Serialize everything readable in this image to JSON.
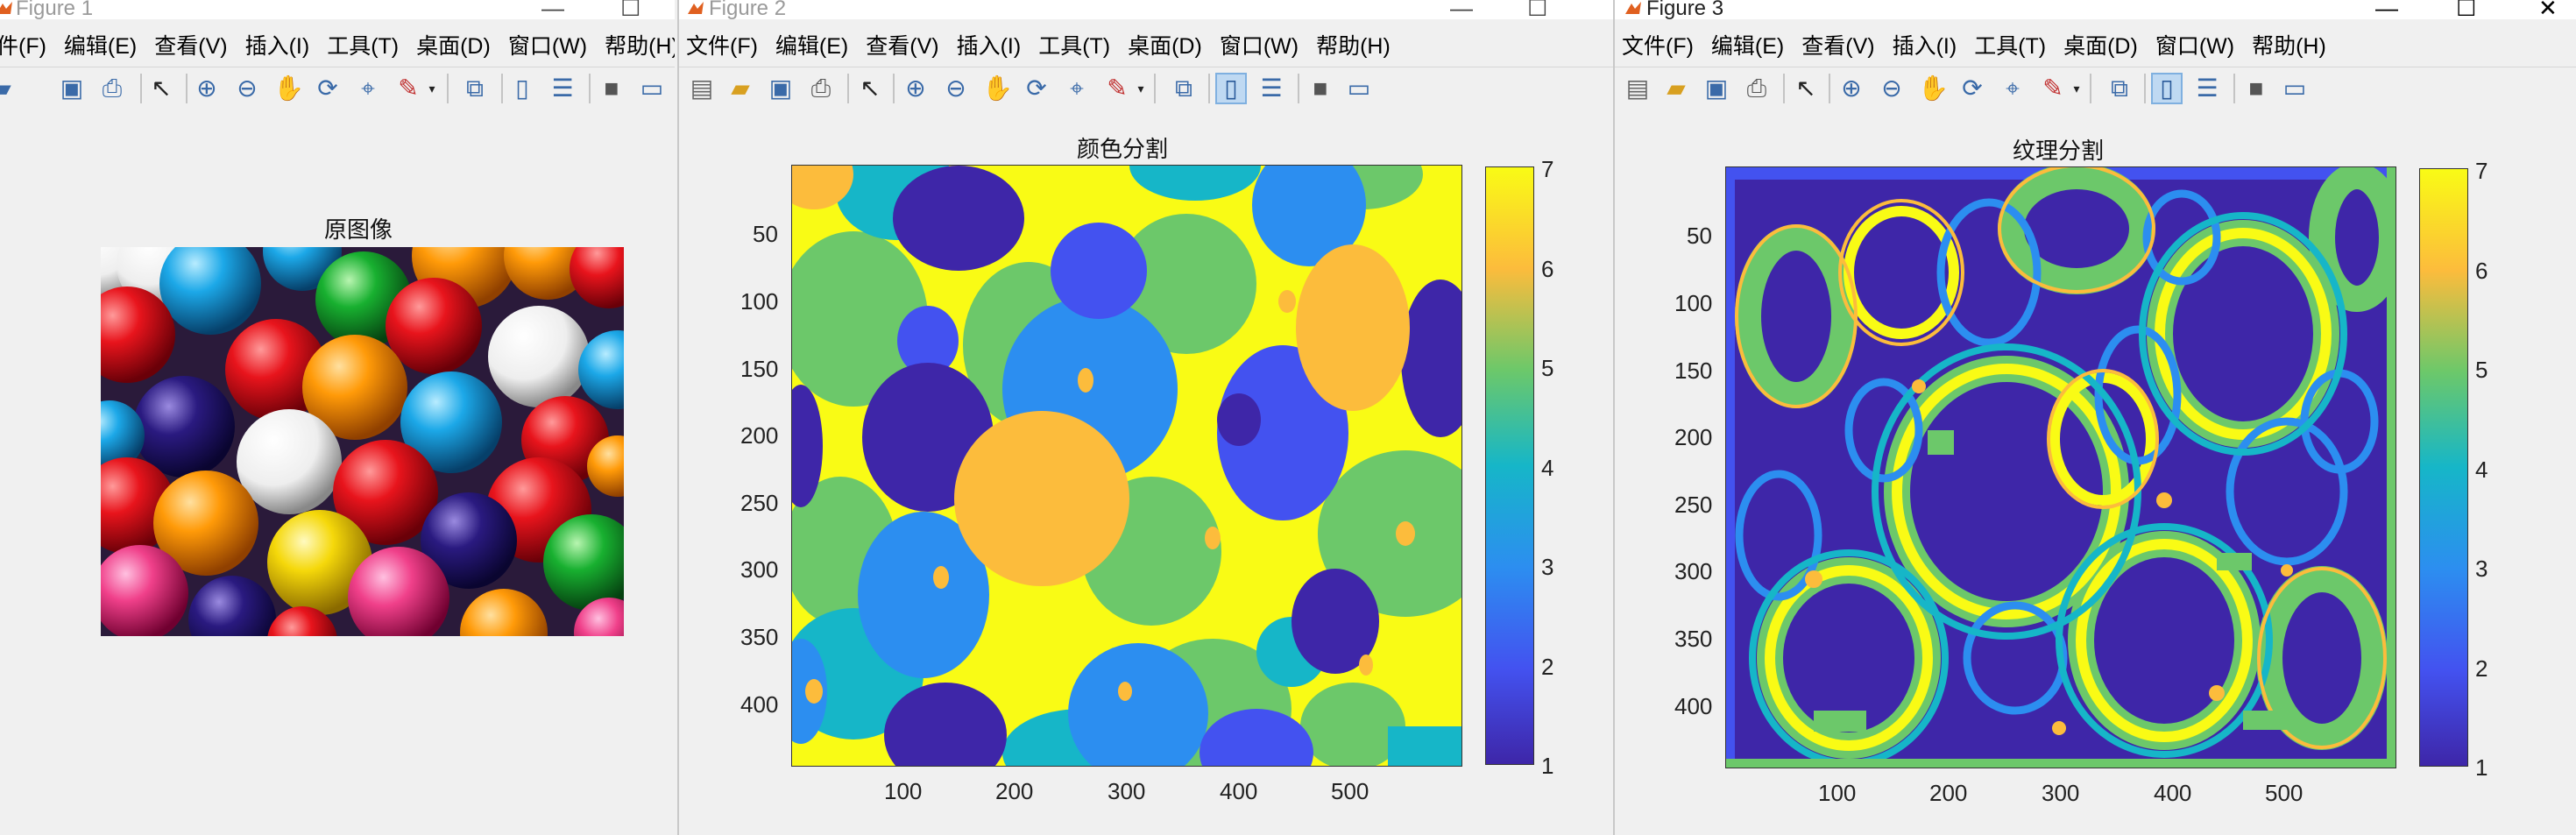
{
  "menu": [
    "文件(F)",
    "编辑(E)",
    "查看(V)",
    "插入(I)",
    "工具(T)",
    "桌面(D)",
    "窗口(W)",
    "帮助(H)"
  ],
  "menu_partial_first": "件(F)",
  "window_buttons": {
    "minimize": "—",
    "maximize": "☐",
    "close": "✕"
  },
  "figure1": {
    "window_title": "Figure 1",
    "axes_title": "原图像"
  },
  "figure2": {
    "window_title": "Figure 2",
    "axes_title": "颜色分割",
    "yticks": [
      "50",
      "100",
      "150",
      "200",
      "250",
      "300",
      "350",
      "400"
    ],
    "xticks": [
      "100",
      "200",
      "300",
      "400",
      "500"
    ],
    "cbar_ticks": [
      "7",
      "6",
      "5",
      "4",
      "3",
      "2",
      "1"
    ]
  },
  "figure3": {
    "window_title": "Figure 3",
    "axes_title": "纹理分割",
    "yticks": [
      "50",
      "100",
      "150",
      "200",
      "250",
      "300",
      "350",
      "400"
    ],
    "xticks": [
      "100",
      "200",
      "300",
      "400",
      "500"
    ],
    "cbar_ticks": [
      "7",
      "6",
      "5",
      "4",
      "3",
      "2",
      "1"
    ]
  },
  "colors": {
    "c1": "#3e26a8",
    "c2": "#4352f0",
    "c3": "#2c8ef0",
    "c4": "#16b6c8",
    "c5": "#6cc86a",
    "c6": "#fcbc3c",
    "c7": "#f9fb15"
  },
  "toolbar_icons": [
    "new-file-icon",
    "open-folder-icon",
    "save-icon",
    "print-icon",
    "pointer-icon",
    "zoom-in-icon",
    "zoom-out-icon",
    "pan-icon",
    "rotate-icon",
    "data-cursor-icon",
    "brush-icon",
    "brush-dropdown-icon",
    "link-plot-icon",
    "colorbar-icon",
    "legend-icon",
    "hide-plot-tools-icon",
    "show-plot-tools-icon"
  ]
}
